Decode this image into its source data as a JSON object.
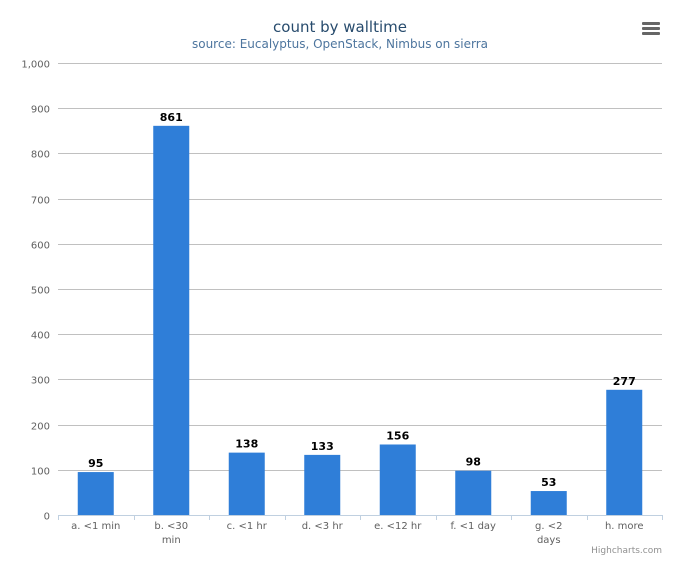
{
  "chart_data": {
    "type": "bar",
    "title": "count by walltime",
    "subtitle": "source: Eucalyptus, OpenStack, Nimbus on sierra",
    "categories": [
      [
        "a. <1 min"
      ],
      [
        "b. <30",
        "min"
      ],
      [
        "c. <1 hr"
      ],
      [
        "d. <3 hr"
      ],
      [
        "e. <12 hr"
      ],
      [
        "f. <1 day"
      ],
      [
        "g. <2",
        "days"
      ],
      [
        "h. more"
      ]
    ],
    "values": [
      95,
      861,
      138,
      133,
      156,
      98,
      53,
      277
    ],
    "ylim": [
      0,
      1000
    ],
    "yticks": [
      "0",
      "100",
      "200",
      "300",
      "400",
      "500",
      "600",
      "700",
      "800",
      "900",
      "1,000"
    ],
    "xlabel": "",
    "ylabel": "",
    "grid": true,
    "legend": "none",
    "bar_color": "#2f7ed8"
  },
  "credits": "Highcharts.com",
  "menu_icon": "hamburger-menu-icon"
}
